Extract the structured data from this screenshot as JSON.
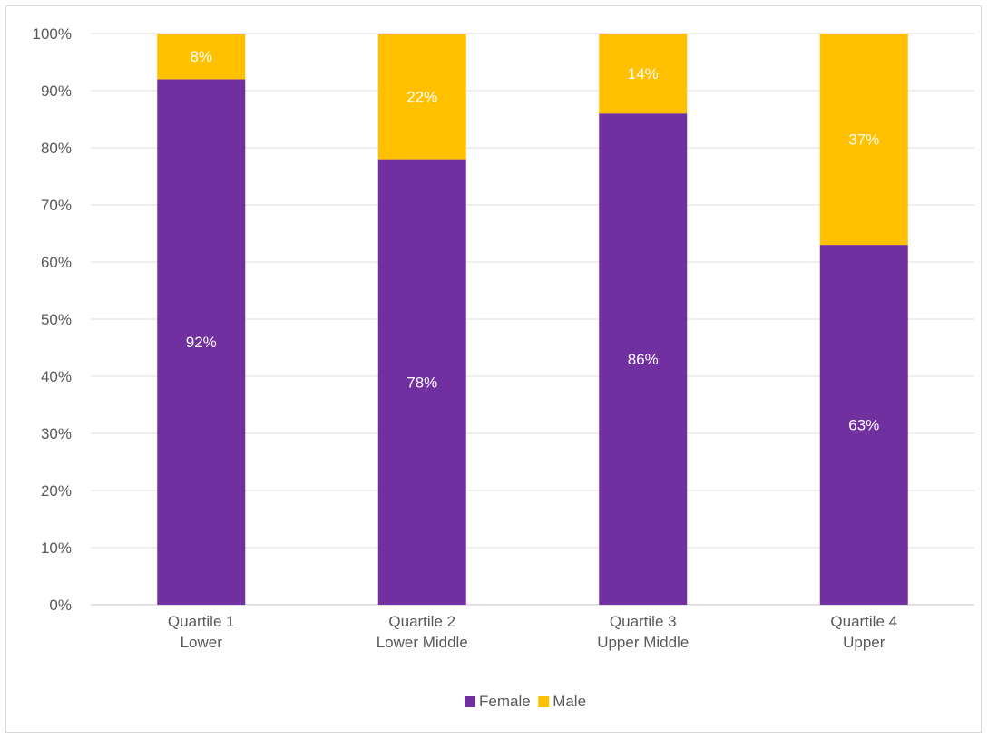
{
  "chart_data": {
    "type": "bar",
    "stacked": true,
    "categories": [
      [
        "Quartile 1",
        "Lower"
      ],
      [
        "Quartile 2",
        "Lower Middle"
      ],
      [
        "Quartile 3",
        "Upper Middle"
      ],
      [
        "Quartile 4",
        "Upper"
      ]
    ],
    "series": [
      {
        "name": "Female",
        "color": "#7030a0",
        "values": [
          92,
          78,
          86,
          63
        ],
        "labels": [
          "92%",
          "78%",
          "86%",
          "63%"
        ]
      },
      {
        "name": "Male",
        "color": "#ffc000",
        "values": [
          8,
          22,
          14,
          37
        ],
        "labels": [
          "8%",
          "22%",
          "14%",
          "37%"
        ]
      }
    ],
    "ylim": [
      0,
      100
    ],
    "yticks": [
      0,
      10,
      20,
      30,
      40,
      50,
      60,
      70,
      80,
      90,
      100
    ],
    "ytick_labels": [
      "0%",
      "10%",
      "20%",
      "30%",
      "40%",
      "50%",
      "60%",
      "70%",
      "80%",
      "90%",
      "100%"
    ],
    "grid": true,
    "legend": "bottom-center",
    "title": "",
    "xlabel": "",
    "ylabel": ""
  }
}
